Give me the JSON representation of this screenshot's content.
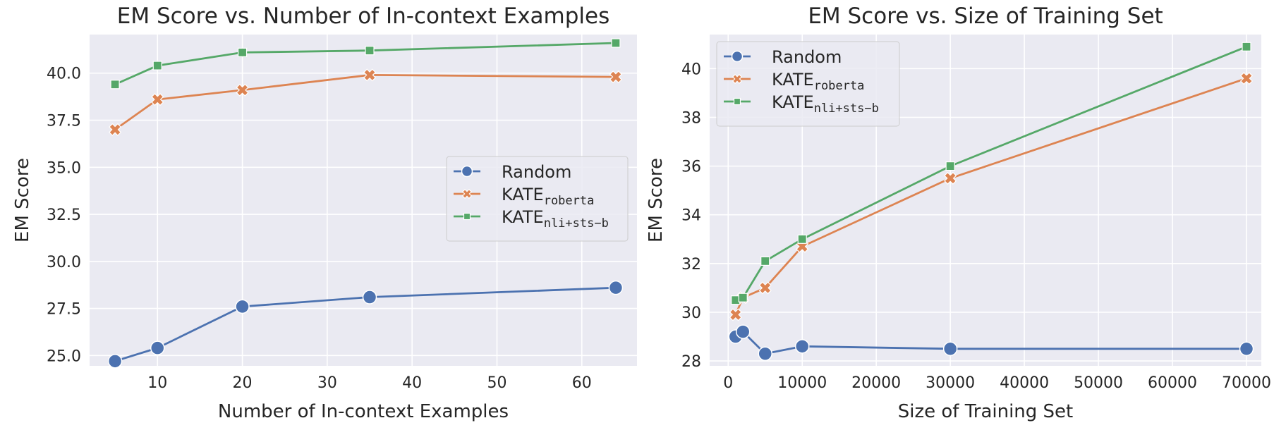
{
  "chart_data": [
    {
      "type": "line",
      "title": "EM Score vs. Number of In-context Examples",
      "xlabel": "Number of In-context Examples",
      "ylabel": "EM Score",
      "xlim": [
        2,
        66.5
      ],
      "ylim": [
        24.45,
        42.05
      ],
      "xticks": [
        10,
        20,
        30,
        40,
        50,
        60
      ],
      "yticks": [
        25.0,
        27.5,
        30.0,
        32.5,
        35.0,
        37.5,
        40.0
      ],
      "ytick_labels": [
        "25.0",
        "27.5",
        "30.0",
        "32.5",
        "35.0",
        "37.5",
        "40.0"
      ],
      "grid": true,
      "legend_position": "center-right",
      "series": [
        {
          "name": "Random",
          "legend_main": "Random",
          "legend_sub": "",
          "color": "#4c72b0",
          "marker": "circle",
          "x": [
            5,
            10,
            20,
            35,
            64
          ],
          "y": [
            24.7,
            25.4,
            27.6,
            28.1,
            28.6
          ]
        },
        {
          "name": "KATE_roberta",
          "legend_main": "KATE",
          "legend_sub": "roberta",
          "color": "#dd8452",
          "marker": "x",
          "x": [
            5,
            10,
            20,
            35,
            64
          ],
          "y": [
            37.0,
            38.6,
            39.1,
            39.9,
            39.8
          ]
        },
        {
          "name": "KATE_nli+sts-b",
          "legend_main": "KATE",
          "legend_sub": "nli+sts−b",
          "color": "#55a868",
          "marker": "square",
          "x": [
            5,
            10,
            20,
            35,
            64
          ],
          "y": [
            39.4,
            40.4,
            41.1,
            41.2,
            41.6
          ]
        }
      ]
    },
    {
      "type": "line",
      "title": "EM Score vs. Size of Training Set",
      "xlabel": "Size of Training Set",
      "ylabel": "EM Score",
      "xlim": [
        -2500,
        72000
      ],
      "ylim": [
        27.8,
        41.4
      ],
      "xticks": [
        0,
        10000,
        20000,
        30000,
        40000,
        50000,
        60000,
        70000
      ],
      "yticks": [
        28,
        30,
        32,
        34,
        36,
        38,
        40
      ],
      "ytick_labels": [
        "28",
        "30",
        "32",
        "34",
        "36",
        "38",
        "40"
      ],
      "grid": true,
      "legend_position": "top-left",
      "series": [
        {
          "name": "Random",
          "legend_main": "Random",
          "legend_sub": "",
          "color": "#4c72b0",
          "marker": "circle",
          "x": [
            1000,
            2000,
            5000,
            10000,
            30000,
            70000
          ],
          "y": [
            29.0,
            29.2,
            28.3,
            28.6,
            28.5,
            28.5
          ]
        },
        {
          "name": "KATE_roberta",
          "legend_main": "KATE",
          "legend_sub": "roberta",
          "color": "#dd8452",
          "marker": "x",
          "x": [
            1000,
            2000,
            5000,
            10000,
            30000,
            70000
          ],
          "y": [
            29.9,
            30.6,
            31.0,
            32.7,
            35.5,
            39.6
          ]
        },
        {
          "name": "KATE_nli+sts-b",
          "legend_main": "KATE",
          "legend_sub": "nli+sts−b",
          "color": "#55a868",
          "marker": "square",
          "x": [
            1000,
            2000,
            5000,
            10000,
            30000,
            70000
          ],
          "y": [
            30.5,
            30.6,
            32.1,
            33.0,
            36.0,
            40.9
          ]
        }
      ]
    }
  ]
}
